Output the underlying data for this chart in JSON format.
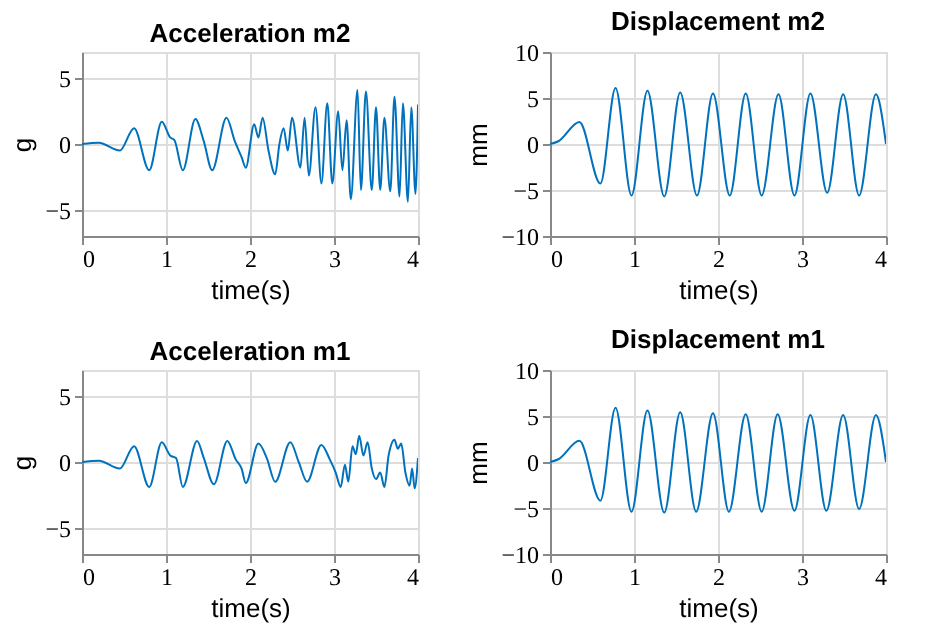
{
  "chart_data": [
    {
      "type": "line",
      "title": "Acceleration m2",
      "xlabel": "time(s)",
      "ylabel": "g",
      "xlim": [
        0,
        4
      ],
      "xticks": [
        0,
        1,
        2,
        3,
        4
      ],
      "ylim": [
        -7,
        7
      ],
      "yticks": [
        -5,
        0,
        5
      ],
      "grid": true,
      "series": [
        {
          "color": "#0072bd",
          "x": [
            0,
            0.2,
            0.45,
            0.62,
            0.8,
            0.95,
            1.05,
            1.1,
            1.2,
            1.35,
            1.45,
            1.55,
            1.72,
            1.82,
            1.9,
            1.95,
            2.05,
            2.1,
            2.15,
            2.22,
            2.3,
            2.35,
            2.4,
            2.45,
            2.5,
            2.6,
            2.65,
            2.7,
            2.78,
            2.85,
            2.92,
            2.98,
            3.05,
            3.1,
            3.15,
            3.2,
            3.28,
            3.32,
            3.38,
            3.45,
            3.5,
            3.55,
            3.6,
            3.67,
            3.72,
            3.78,
            3.82,
            3.88,
            3.92,
            3.97,
            4.0
          ],
          "values": [
            0,
            0.1,
            -0.5,
            1.2,
            -2,
            1.7,
            0.5,
            0.3,
            -2,
            1.9,
            0.2,
            -2,
            2,
            0.2,
            -1,
            -1.8,
            1.5,
            0.5,
            2,
            -0.5,
            -2.3,
            0,
            1.2,
            -0.5,
            2,
            -1.8,
            2,
            -2.4,
            2.8,
            -3,
            3.1,
            -3,
            2.5,
            -2,
            1.8,
            -4.2,
            4.1,
            -3.5,
            4,
            -3.5,
            2.8,
            -3.5,
            2,
            -3.6,
            3.6,
            -4,
            3.1,
            -4.4,
            2.8,
            -3.8,
            3
          ]
        }
      ]
    },
    {
      "type": "line",
      "title": "Displacement m2",
      "xlabel": "time(s)",
      "ylabel": "mm",
      "xlim": [
        0,
        4
      ],
      "xticks": [
        0,
        1,
        2,
        3,
        4
      ],
      "ylim": [
        -10,
        10
      ],
      "yticks": [
        -10,
        -5,
        0,
        5,
        10
      ],
      "grid": true,
      "series": [
        {
          "color": "#0072bd",
          "x": [
            0,
            0.1,
            0.35,
            0.6,
            0.78,
            0.97,
            1.16,
            1.36,
            1.55,
            1.75,
            1.94,
            2.14,
            2.33,
            2.52,
            2.72,
            2.91,
            3.1,
            3.3,
            3.49,
            3.68,
            3.88,
            4.0
          ],
          "values": [
            0,
            0.3,
            2.4,
            -4.3,
            6.1,
            -5.6,
            5.8,
            -5.7,
            5.6,
            -5.6,
            5.5,
            -5.6,
            5.5,
            -5.6,
            5.4,
            -5.6,
            5.5,
            -5.3,
            5.4,
            -5.6,
            5.4,
            0
          ]
        }
      ]
    },
    {
      "type": "line",
      "title": "Acceleration m1",
      "xlabel": "time(s)",
      "ylabel": "g",
      "xlim": [
        0,
        4
      ],
      "xticks": [
        0,
        1,
        2,
        3,
        4
      ],
      "ylim": [
        -7,
        7
      ],
      "yticks": [
        -5,
        0,
        5
      ],
      "grid": true,
      "series": [
        {
          "color": "#0072bd",
          "x": [
            0,
            0.2,
            0.45,
            0.62,
            0.8,
            0.95,
            1.05,
            1.12,
            1.2,
            1.37,
            1.45,
            1.57,
            1.73,
            1.83,
            1.9,
            1.95,
            2.1,
            2.2,
            2.3,
            2.48,
            2.58,
            2.68,
            2.85,
            2.95,
            3.02,
            3.08,
            3.13,
            3.17,
            3.22,
            3.26,
            3.3,
            3.35,
            3.4,
            3.45,
            3.5,
            3.55,
            3.6,
            3.65,
            3.72,
            3.76,
            3.8,
            3.85,
            3.9,
            3.93,
            3.96,
            4.0
          ],
          "values": [
            0,
            0.1,
            -0.5,
            1.2,
            -1.9,
            1.5,
            0.5,
            0.3,
            -1.9,
            1.6,
            0.3,
            -1.7,
            1.6,
            0.2,
            -0.5,
            -1.6,
            1.4,
            0.3,
            -1.5,
            1.5,
            0,
            -1.5,
            1.3,
            0.2,
            -0.8,
            -1.9,
            -0.2,
            -1.5,
            1.2,
            0.6,
            2,
            0.5,
            1.5,
            -0.5,
            -1.3,
            -0.8,
            -1.9,
            0.5,
            1.7,
            1,
            1.4,
            -0.8,
            -1.8,
            -0.5,
            -2,
            0.3
          ]
        }
      ]
    },
    {
      "type": "line",
      "title": "Displacement m1",
      "xlabel": "time(s)",
      "ylabel": "mm",
      "xlim": [
        0,
        4
      ],
      "xticks": [
        0,
        1,
        2,
        3,
        4
      ],
      "ylim": [
        -10,
        10
      ],
      "yticks": [
        -10,
        -5,
        0,
        5,
        10
      ],
      "grid": true,
      "series": [
        {
          "color": "#0072bd",
          "x": [
            0,
            0.1,
            0.35,
            0.6,
            0.78,
            0.97,
            1.16,
            1.36,
            1.55,
            1.74,
            1.94,
            2.13,
            2.33,
            2.52,
            2.71,
            2.91,
            3.1,
            3.29,
            3.49,
            3.68,
            3.88,
            4.0
          ],
          "values": [
            0,
            0.3,
            2.3,
            -4.2,
            5.9,
            -5.4,
            5.6,
            -5.5,
            5.4,
            -5.4,
            5.3,
            -5.4,
            5.2,
            -5.4,
            5.2,
            -5.3,
            5.1,
            -5.3,
            5.1,
            -5.1,
            5.1,
            0
          ]
        }
      ]
    }
  ]
}
